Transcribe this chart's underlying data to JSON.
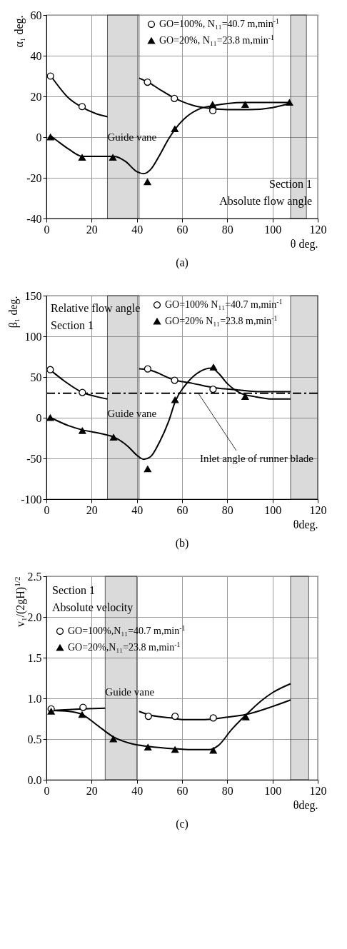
{
  "chart_data": [
    {
      "type": "scatter",
      "xlabel": "θ deg.",
      "ylabel": "α₁ deg.",
      "xlim": [
        0,
        120
      ],
      "ylim": [
        -40,
        60
      ],
      "xticks": [
        0,
        20,
        40,
        60,
        80,
        100,
        120
      ],
      "yticks": [
        -40,
        -20,
        0,
        20,
        40,
        60
      ],
      "grid": true,
      "legend": "top right",
      "series": [
        {
          "name": "GO=100%,  N₁₁=40.7 m,min$^{-1}$",
          "color": "#000000",
          "marker": "circle",
          "x": [
            1.8,
            15.8,
            44.7,
            56.6,
            73.6
          ],
          "values": [
            30,
            15,
            27,
            19,
            13
          ]
        },
        {
          "name": "GO=20%,  N₁₁=23.8 m,min$^{-1}$",
          "color": "#000000",
          "marker": "triangle",
          "x": [
            1.8,
            15.8,
            29.4,
            44.7,
            56.8,
            73.5,
            87.9,
            107.5
          ],
          "values": [
            0,
            -10,
            -10,
            -22,
            4,
            16,
            16,
            17
          ]
        },
        {
          "type": "line",
          "color": "#000000",
          "x": [
            2,
            10,
            16,
            22,
            27
          ],
          "values": [
            30,
            19,
            14.5,
            11.5,
            10
          ]
        },
        {
          "type": "line",
          "color": "#000000",
          "x": [
            41,
            45,
            50,
            57,
            65,
            73,
            80,
            90,
            100,
            107.5
          ],
          "values": [
            29,
            27,
            23.5,
            19,
            15.5,
            14,
            13.5,
            13.5,
            14.5,
            16.5
          ]
        },
        {
          "type": "line",
          "color": "#000000",
          "x": [
            2,
            5,
            10,
            16,
            22,
            30,
            35,
            40,
            43,
            46,
            50,
            54,
            57,
            62,
            68,
            74,
            80,
            88,
            100,
            107.5
          ],
          "values": [
            0.5,
            -2,
            -6,
            -9.5,
            -9.5,
            -9.5,
            -12,
            -17,
            -18,
            -16,
            -9,
            -1,
            4,
            10,
            14,
            15.5,
            16.5,
            17,
            17,
            17
          ]
        }
      ],
      "bands": [
        {
          "axis": "x",
          "from": 27,
          "to": 41,
          "label": "Guide vane"
        },
        {
          "axis": "x",
          "from": 108,
          "to": 115
        }
      ],
      "annotations": [
        "Section 1",
        "Absolute flow angle",
        "(a)"
      ]
    },
    {
      "type": "scatter",
      "xlabel": "θdeg.",
      "ylabel": "β₁ deg.",
      "xlim": [
        0,
        120
      ],
      "ylim": [
        -100,
        150
      ],
      "xticks": [
        0,
        20,
        40,
        60,
        80,
        100,
        120
      ],
      "yticks": [
        -100,
        -50,
        0,
        50,
        100,
        150
      ],
      "grid": true,
      "legend": "top right",
      "series": [
        {
          "name": "GO=100% N₁₁=40.7 m,min$^{-1}$",
          "color": "#000000",
          "marker": "circle",
          "x": [
            1.7,
            15.9,
            44.8,
            56.7,
            73.7
          ],
          "values": [
            59,
            31,
            60,
            46,
            35
          ]
        },
        {
          "name": "GO=20% N₁₁=23.8 m,min$^{-1}$",
          "color": "#000000",
          "marker": "triangle",
          "x": [
            1.7,
            15.9,
            29.7,
            44.8,
            56.9,
            73.9,
            87.9
          ],
          "values": [
            0,
            -16,
            -24,
            -63,
            22,
            62,
            26
          ]
        },
        {
          "type": "line",
          "color": "#000000",
          "x": [
            2,
            8,
            16,
            22,
            27
          ],
          "values": [
            58,
            45,
            31,
            26,
            23
          ]
        },
        {
          "type": "line",
          "color": "#000000",
          "x": [
            41,
            45,
            57,
            65,
            74,
            85,
            95,
            108
          ],
          "values": [
            60,
            59,
            46,
            42,
            37,
            34,
            32,
            32
          ]
        },
        {
          "type": "line",
          "color": "#000000",
          "x": [
            2,
            10,
            16,
            25,
            30,
            36,
            40,
            43,
            46,
            50,
            54,
            57,
            62,
            68,
            73,
            76,
            80,
            86,
            92,
            100,
            108
          ],
          "values": [
            0,
            -10,
            -15,
            -20,
            -24,
            -35,
            -46,
            -51,
            -48,
            -30,
            -5,
            20,
            42,
            57,
            61,
            55,
            42,
            30,
            26,
            23,
            23
          ]
        }
      ],
      "ref_lines": [
        {
          "axis": "y",
          "value": 30,
          "label": "Inlet angle of runner blade",
          "line_style": "dashed"
        }
      ],
      "bands": [
        {
          "axis": "x",
          "from": 27,
          "to": 41,
          "label": "Guide vane"
        },
        {
          "axis": "x",
          "from": 108,
          "to": 120
        }
      ],
      "annotations": [
        "Relative flow angle",
        "Section 1",
        "(b)"
      ]
    },
    {
      "type": "scatter",
      "xlabel": "θdeg.",
      "ylabel": "v₁/(2gH)$^{1/2}$",
      "xlim": [
        0,
        120
      ],
      "ylim": [
        0,
        2.5
      ],
      "xticks": [
        0,
        20,
        40,
        60,
        80,
        100,
        120
      ],
      "yticks": [
        {
          "value": 0,
          "label": "0.0"
        },
        0.5,
        {
          "value": 1,
          "label": "1.0"
        },
        1.5,
        {
          "value": 2,
          "label": "2.0"
        },
        2.5
      ],
      "grid": true,
      "legend": "top left",
      "series": [
        {
          "name": "GO=100%,N₁₁=40.7 m,min$^{-1}$",
          "color": "#000000",
          "marker": "circle",
          "x": [
            2.1,
            16.2,
            45.1,
            56.9,
            73.8
          ],
          "values": [
            0.87,
            0.89,
            0.78,
            0.78,
            0.76
          ]
        },
        {
          "name": "GO=20%,N₁₁=23.8 m,min$^{-1}$",
          "color": "#000000",
          "marker": "triangle",
          "x": [
            2.1,
            15.8,
            29.6,
            44.9,
            56.9,
            73.8,
            88.2
          ],
          "values": [
            0.84,
            0.8,
            0.5,
            0.4,
            0.37,
            0.36,
            0.77
          ]
        },
        {
          "type": "line",
          "color": "#000000",
          "x": [
            2,
            16,
            26
          ],
          "values": [
            0.85,
            0.87,
            0.88
          ]
        },
        {
          "type": "line",
          "color": "#000000",
          "x": [
            41,
            45,
            55,
            60,
            70,
            80,
            88,
            100,
            108
          ],
          "values": [
            0.84,
            0.8,
            0.76,
            0.74,
            0.74,
            0.77,
            0.8,
            0.9,
            0.98
          ]
        },
        {
          "type": "line",
          "color": "#000000",
          "x": [
            2,
            10,
            16,
            22,
            30,
            38,
            45,
            57,
            65,
            72,
            76,
            82,
            88,
            95,
            100,
            108
          ],
          "values": [
            0.85,
            0.84,
            0.8,
            0.68,
            0.52,
            0.44,
            0.41,
            0.38,
            0.37,
            0.37,
            0.42,
            0.62,
            0.79,
            0.97,
            1.07,
            1.18
          ]
        }
      ],
      "bands": [
        {
          "axis": "x",
          "from": 26,
          "to": 40,
          "label": "Guide vane"
        },
        {
          "axis": "x",
          "from": 108,
          "to": 116
        }
      ],
      "annotations": [
        "Section 1",
        "Absolute velocity",
        "(c)"
      ]
    }
  ]
}
